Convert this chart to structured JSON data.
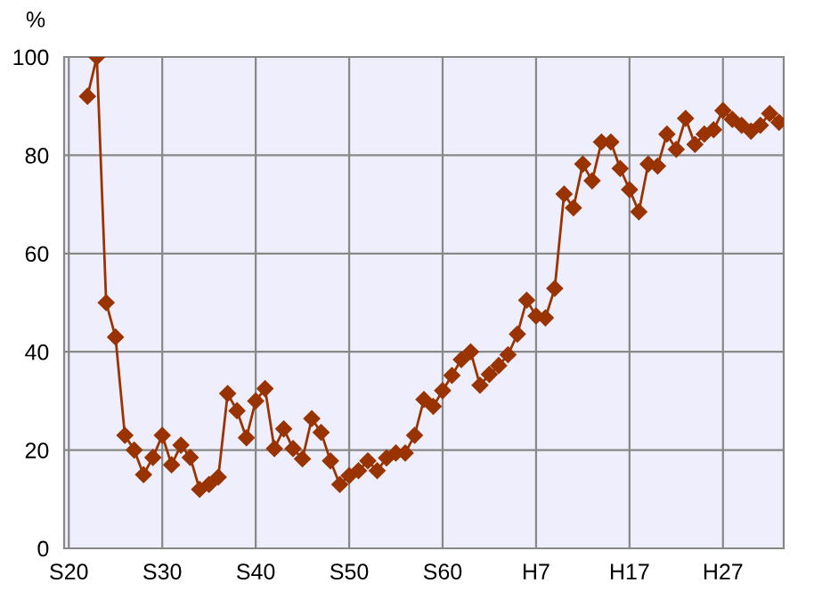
{
  "chart_data": {
    "type": "line",
    "ylabel": "%",
    "categories": [
      "S20",
      null,
      null,
      null,
      null,
      null,
      null,
      null,
      null,
      null,
      "S30",
      null,
      null,
      null,
      null,
      null,
      null,
      null,
      null,
      null,
      "S40",
      null,
      null,
      null,
      null,
      null,
      null,
      null,
      null,
      null,
      "S50",
      null,
      null,
      null,
      null,
      null,
      null,
      null,
      null,
      null,
      "S60",
      null,
      null,
      null,
      null,
      null,
      null,
      null,
      null,
      null,
      "H7",
      null,
      null,
      null,
      null,
      null,
      null,
      null,
      null,
      null,
      "H17",
      null,
      null,
      null,
      null,
      null,
      null,
      null,
      null,
      null,
      "H27",
      null,
      null,
      null,
      null,
      null,
      null
    ],
    "series": [
      {
        "color": "#993300",
        "values": [
          null,
          null,
          92,
          100,
          50,
          43,
          23,
          20,
          15,
          18.5,
          23,
          17,
          21,
          18.5,
          12,
          13,
          14.5,
          31.5,
          28,
          22.5,
          30,
          32.5,
          20.3,
          24.3,
          20.3,
          18.2,
          26.4,
          23.6,
          17.8,
          13,
          14.8,
          15.8,
          17.8,
          15.8,
          18.4,
          19.4,
          19.4,
          23,
          30.3,
          28.9,
          32.1,
          35.2,
          38.4,
          40,
          33.2,
          35.4,
          37.2,
          39.4,
          43.6,
          50.5,
          47.3,
          46.9,
          52.9,
          72.1,
          69.3,
          78.2,
          74.8,
          82.7,
          82.7,
          77.3,
          73,
          68.5,
          78.2,
          77.8,
          84.3,
          81.2,
          87.5,
          82.2,
          84.3,
          85.2,
          89.1,
          87.3,
          86.1,
          84.9,
          86.1,
          88.5,
          86.7
        ]
      }
    ],
    "ylim": [
      0,
      100
    ],
    "yticks": [
      0,
      20,
      40,
      60,
      80,
      100
    ],
    "grid": true,
    "marker": "diamond",
    "line_style": "solid"
  }
}
